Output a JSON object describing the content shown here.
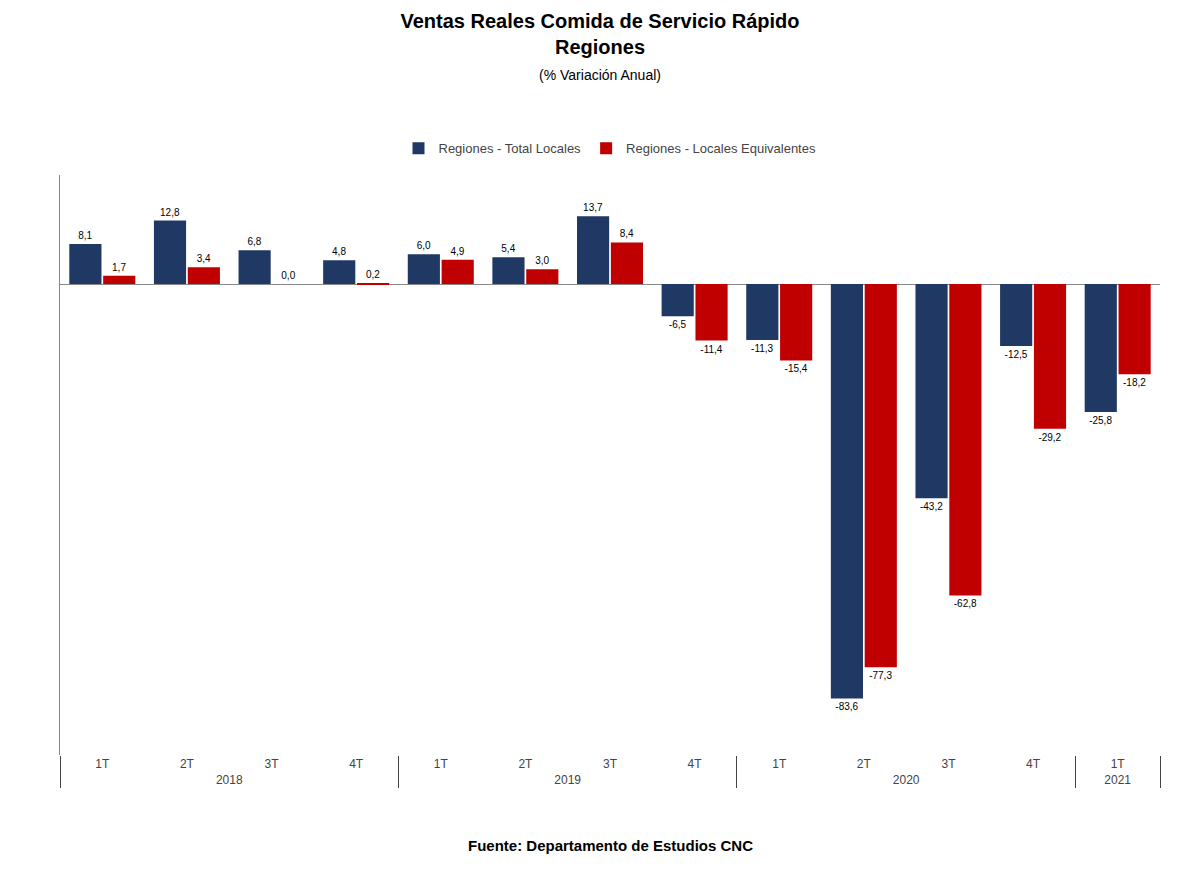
{
  "chart_data": {
    "type": "bar",
    "title": "Ventas Reales Comida de Servicio Rápido\nRegiones",
    "subtitle": "(% Variación Anual)",
    "annotations": [
      "Fuente: Departamento de Estudios CNC"
    ],
    "categories": [
      [
        "2018",
        "1T"
      ],
      [
        "2018",
        "2T"
      ],
      [
        "2018",
        "3T"
      ],
      [
        "2018",
        "4T"
      ],
      [
        "2019",
        "1T"
      ],
      [
        "2019",
        "2T"
      ],
      [
        "2019",
        "3T"
      ],
      [
        "2019",
        "4T"
      ],
      [
        "2020",
        "1T"
      ],
      [
        "2020",
        "2T"
      ],
      [
        "2020",
        "3T"
      ],
      [
        "2020",
        "4T"
      ],
      [
        "2021",
        "1T"
      ]
    ],
    "series": [
      {
        "name": "Regiones - Total Locales",
        "color": "#1F3864",
        "values": [
          8.1,
          12.8,
          6.8,
          4.8,
          6.0,
          5.4,
          13.7,
          -6.5,
          -11.3,
          -83.6,
          -43.2,
          -12.5,
          -25.8
        ],
        "value_labels": [
          "8,1",
          "12,8",
          "6,8",
          "4,8",
          "6,0",
          "5,4",
          "13,7",
          "-6,5",
          "-11,3",
          "-83,6",
          "-43,2",
          "-12,5",
          "-25,8"
        ]
      },
      {
        "name": "Regiones - Locales Equivalentes",
        "color": "#C00000",
        "values": [
          1.7,
          3.4,
          0.0,
          0.2,
          4.9,
          3.0,
          8.4,
          -11.4,
          -15.4,
          -77.3,
          -62.8,
          -29.2,
          -18.2
        ],
        "value_labels": [
          "1,7",
          "3,4",
          "0,0",
          "0,2",
          "4,9",
          "3,0",
          "8,4",
          "-11,4",
          "-15,4",
          "-77,3",
          "-62,8",
          "-29,2",
          "-18,2"
        ]
      }
    ],
    "ylim": [
      -95,
      22
    ],
    "yticks": [],
    "grid": false,
    "legend": "top",
    "data_labels": true,
    "tick_labels": "x"
  }
}
